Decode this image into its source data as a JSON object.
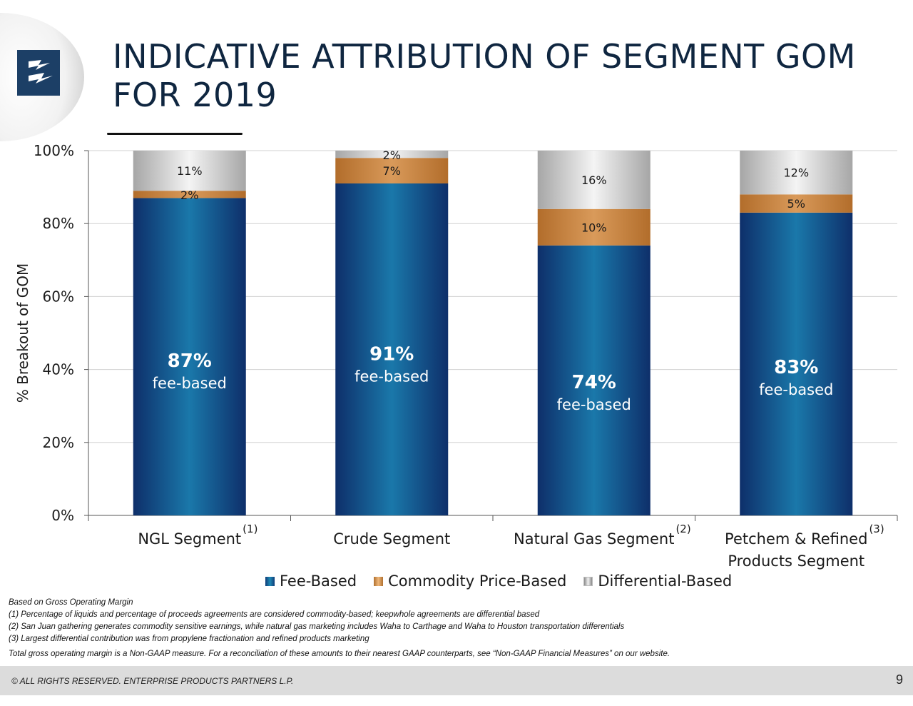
{
  "title": "INDICATIVE ATTRIBUTION OF SEGMENT GOM FOR 2019",
  "logo": {
    "icon": "enterprise-lightning-logo",
    "color": "#1c3f66"
  },
  "colors": {
    "fee_based": "#1a78aa",
    "commodity_price_based": "#d99a5a",
    "differential_based": "#d4d4d4",
    "title": "#0f2640"
  },
  "chart_data": {
    "type": "bar",
    "stacked": true,
    "categories": [
      "NGL Segment",
      "Crude Segment",
      "Natural Gas Segment",
      "Petchem & Refined Products Segment"
    ],
    "category_lines": [
      [
        "NGL Segment"
      ],
      [
        "Crude Segment"
      ],
      [
        "Natural Gas Segment"
      ],
      [
        "Petchem & Refined",
        "Products Segment"
      ]
    ],
    "category_notes": [
      "(1)",
      "",
      "(2)",
      "(3)"
    ],
    "series": [
      {
        "name": "Fee-Based",
        "values": [
          87,
          91,
          74,
          83
        ]
      },
      {
        "name": "Commodity Price-Based",
        "values": [
          2,
          7,
          10,
          5
        ]
      },
      {
        "name": "Differential-Based",
        "values": [
          11,
          2,
          16,
          12
        ]
      }
    ],
    "segment_labels": [
      [
        "87%",
        "2%",
        "11%"
      ],
      [
        "91%",
        "7%",
        "2%"
      ],
      [
        "74%",
        "10%",
        "16%"
      ],
      [
        "83%",
        "5%",
        "12%"
      ]
    ],
    "fee_caption": "fee-based",
    "ylabel": "% Breakout of GOM",
    "ylim": [
      0,
      100
    ],
    "yticks": [
      "0%",
      "20%",
      "40%",
      "60%",
      "80%",
      "100%"
    ],
    "grid": true,
    "legend_position": "bottom"
  },
  "notes": {
    "basis": "Based on Gross Operating Margin",
    "footnotes": [
      "(1)  Percentage of liquids and percentage of proceeds agreements are considered commodity-based; keepwhole agreements are differential based",
      "(2)  San Juan gathering generates commodity sensitive earnings, while natural gas marketing includes Waha to Carthage and Waha to Houston transportation differentials",
      "(3)  Largest differential contribution was from propylene fractionation and refined products marketing"
    ],
    "non_gaap": "Total gross operating margin is a Non-GAAP measure. For a reconciliation of these amounts to their nearest GAAP counterparts, see “Non-GAAP Financial Measures” on our website."
  },
  "footer": {
    "copyright": "© ALL RIGHTS RESERVED. ENTERPRISE PRODUCTS PARTNERS L.P.",
    "page_number": "9"
  }
}
